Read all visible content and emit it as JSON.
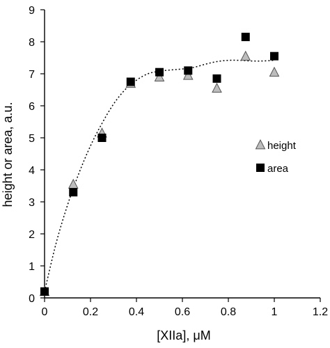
{
  "chart_data": {
    "type": "scatter",
    "title": "",
    "xlabel": "[XIIa], μM",
    "ylabel": "height or area, a.u.",
    "xlim": [
      0,
      1.2
    ],
    "ylim": [
      0,
      9
    ],
    "x_ticks": [
      0,
      0.2,
      0.4,
      0.6,
      0.8,
      1,
      1.2
    ],
    "x_tick_labels": [
      "0",
      "0.2",
      "0.4",
      "0.6",
      "0.8",
      "1",
      "1.2"
    ],
    "y_ticks": [
      0,
      1,
      2,
      3,
      4,
      5,
      6,
      7,
      8,
      9
    ],
    "y_tick_labels": [
      "0",
      "1",
      "2",
      "3",
      "4",
      "5",
      "6",
      "7",
      "8",
      "9"
    ],
    "grid": false,
    "legend_position": "right",
    "series": [
      {
        "name": "height",
        "marker": "triangle",
        "color": "#bdbdbd",
        "x": [
          0,
          0.125,
          0.25,
          0.375,
          0.5,
          0.625,
          0.75,
          0.875,
          1.0
        ],
        "y": [
          0.2,
          3.55,
          5.15,
          6.7,
          6.9,
          6.95,
          6.55,
          7.55,
          7.05
        ]
      },
      {
        "name": "area",
        "marker": "square",
        "color": "#000000",
        "x": [
          0,
          0.125,
          0.25,
          0.375,
          0.5,
          0.625,
          0.75,
          0.875,
          1.0
        ],
        "y": [
          0.2,
          3.3,
          5.0,
          6.75,
          7.05,
          7.1,
          6.85,
          8.15,
          7.55
        ]
      }
    ],
    "fit_curve": {
      "style": "dotted",
      "x": [
        0,
        0.05,
        0.1,
        0.15,
        0.2,
        0.25,
        0.3,
        0.35,
        0.4,
        0.45,
        0.5,
        0.55,
        0.6,
        0.65,
        0.7,
        0.75,
        0.8,
        0.85,
        0.9,
        0.95,
        1.0
      ],
      "y": [
        0.2,
        1.7,
        2.9,
        3.9,
        4.75,
        5.45,
        6.05,
        6.5,
        6.8,
        7.0,
        7.08,
        7.12,
        7.15,
        7.2,
        7.3,
        7.38,
        7.42,
        7.42,
        7.4,
        7.4,
        7.42
      ]
    }
  }
}
